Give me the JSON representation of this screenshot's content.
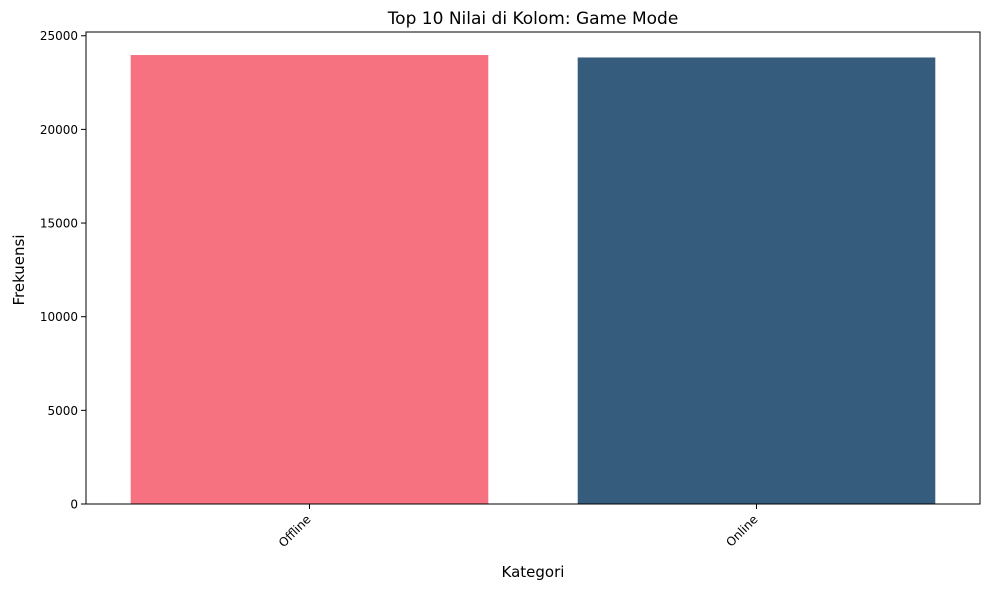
{
  "chart_data": {
    "type": "bar",
    "title": "Top 10 Nilai di Kolom: Game Mode",
    "xlabel": "Kategori",
    "ylabel": "Frekuensi",
    "categories": [
      "Offline",
      "Online"
    ],
    "values": [
      23970,
      23840
    ],
    "colors": [
      "#f67280",
      "#355c7d"
    ],
    "ylim": [
      0,
      25200
    ],
    "yticks": [
      0,
      5000,
      10000,
      15000,
      20000,
      25000
    ],
    "grid": false,
    "legend": "none"
  }
}
